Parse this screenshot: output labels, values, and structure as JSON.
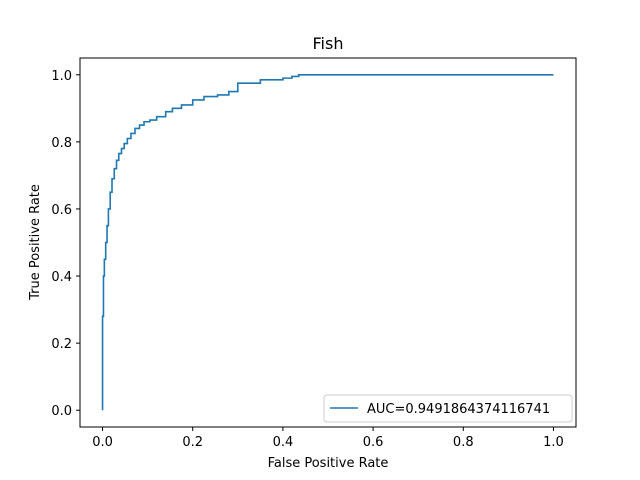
{
  "chart_data": {
    "type": "line",
    "title": "Fish",
    "xlabel": "False Positive Rate",
    "ylabel": "True Positive Rate",
    "xlim": [
      -0.05,
      1.05
    ],
    "ylim": [
      -0.05,
      1.05
    ],
    "xticks": [
      0.0,
      0.2,
      0.4,
      0.6,
      0.8,
      1.0
    ],
    "xtick_labels": [
      "0.0",
      "0.2",
      "0.4",
      "0.6",
      "0.8",
      "1.0"
    ],
    "yticks": [
      0.0,
      0.2,
      0.4,
      0.6,
      0.8,
      1.0
    ],
    "ytick_labels": [
      "0.0",
      "0.2",
      "0.4",
      "0.6",
      "0.8",
      "1.0"
    ],
    "grid": false,
    "legend_position": "lower-right",
    "series": [
      {
        "name": "AUC=0.9491864374116741",
        "color": "#1f77b4",
        "x": [
          0.0,
          0.0,
          0.002,
          0.002,
          0.004,
          0.004,
          0.007,
          0.007,
          0.01,
          0.01,
          0.013,
          0.013,
          0.017,
          0.017,
          0.021,
          0.021,
          0.026,
          0.026,
          0.031,
          0.031,
          0.036,
          0.036,
          0.042,
          0.042,
          0.048,
          0.048,
          0.055,
          0.055,
          0.063,
          0.063,
          0.072,
          0.072,
          0.082,
          0.082,
          0.092,
          0.092,
          0.105,
          0.105,
          0.12,
          0.12,
          0.14,
          0.14,
          0.155,
          0.155,
          0.175,
          0.175,
          0.2,
          0.2,
          0.225,
          0.225,
          0.255,
          0.255,
          0.28,
          0.28,
          0.3,
          0.3,
          0.35,
          0.35,
          0.4,
          0.4,
          0.42,
          0.42,
          0.435,
          0.435,
          1.0
        ],
        "y": [
          0.0,
          0.28,
          0.28,
          0.4,
          0.4,
          0.45,
          0.45,
          0.5,
          0.5,
          0.55,
          0.55,
          0.6,
          0.6,
          0.65,
          0.65,
          0.69,
          0.69,
          0.72,
          0.72,
          0.745,
          0.745,
          0.765,
          0.765,
          0.78,
          0.78,
          0.795,
          0.795,
          0.81,
          0.81,
          0.825,
          0.825,
          0.84,
          0.84,
          0.85,
          0.85,
          0.86,
          0.86,
          0.865,
          0.865,
          0.875,
          0.875,
          0.89,
          0.89,
          0.9,
          0.9,
          0.91,
          0.91,
          0.925,
          0.925,
          0.935,
          0.935,
          0.94,
          0.94,
          0.95,
          0.95,
          0.975,
          0.975,
          0.985,
          0.985,
          0.99,
          0.99,
          0.995,
          0.995,
          1.0,
          1.0
        ]
      }
    ]
  }
}
